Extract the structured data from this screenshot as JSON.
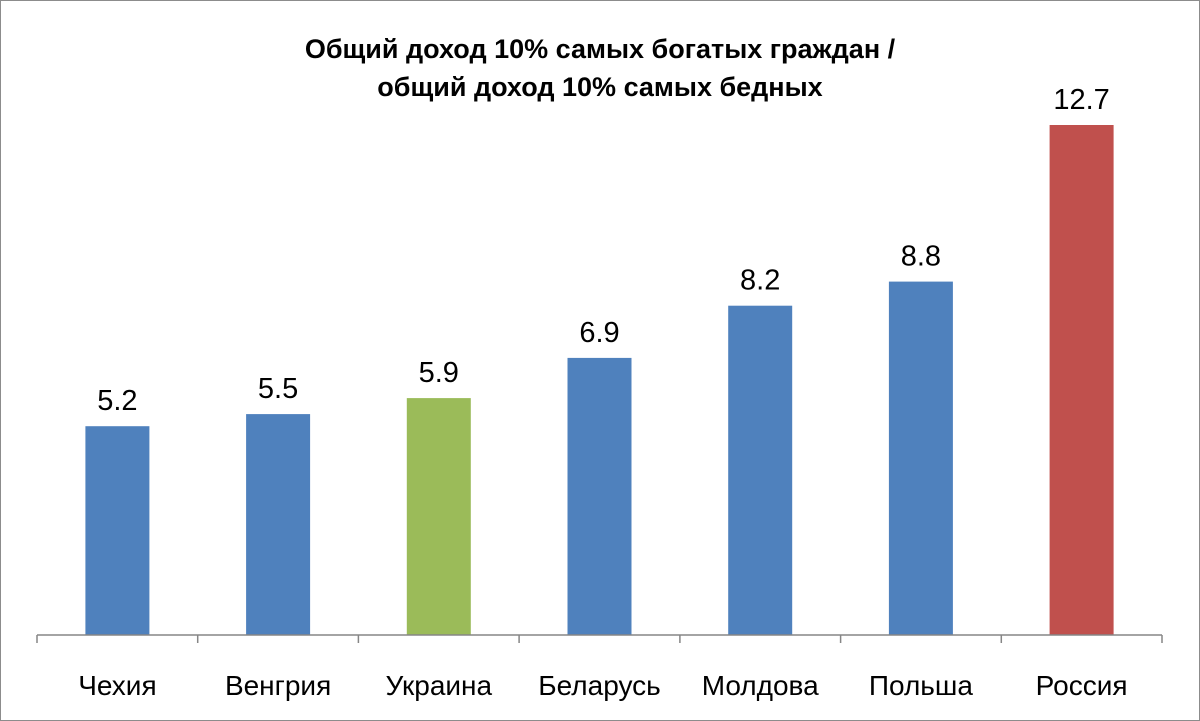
{
  "chart_data": {
    "type": "bar",
    "title_lines": [
      "Общий доход 10%  самых богатых граждан /",
      "общий доход 10% самых бедных"
    ],
    "categories": [
      "Чехия",
      "Венгрия",
      "Украина",
      "Беларусь",
      "Молдова",
      "Польша",
      "Россия"
    ],
    "values": [
      5.2,
      5.5,
      5.9,
      6.9,
      8.2,
      8.8,
      12.7
    ],
    "value_labels": [
      "5.2",
      "5.5",
      "5.9",
      "6.9",
      "8.2",
      "8.8",
      "12.7"
    ],
    "bar_colors": [
      "#4f81bd",
      "#4f81bd",
      "#9bbb59",
      "#4f81bd",
      "#4f81bd",
      "#4f81bd",
      "#c0504d"
    ],
    "ylim": [
      0,
      12.7
    ],
    "grid": false,
    "legend": "none",
    "axis_color": "#868686"
  }
}
